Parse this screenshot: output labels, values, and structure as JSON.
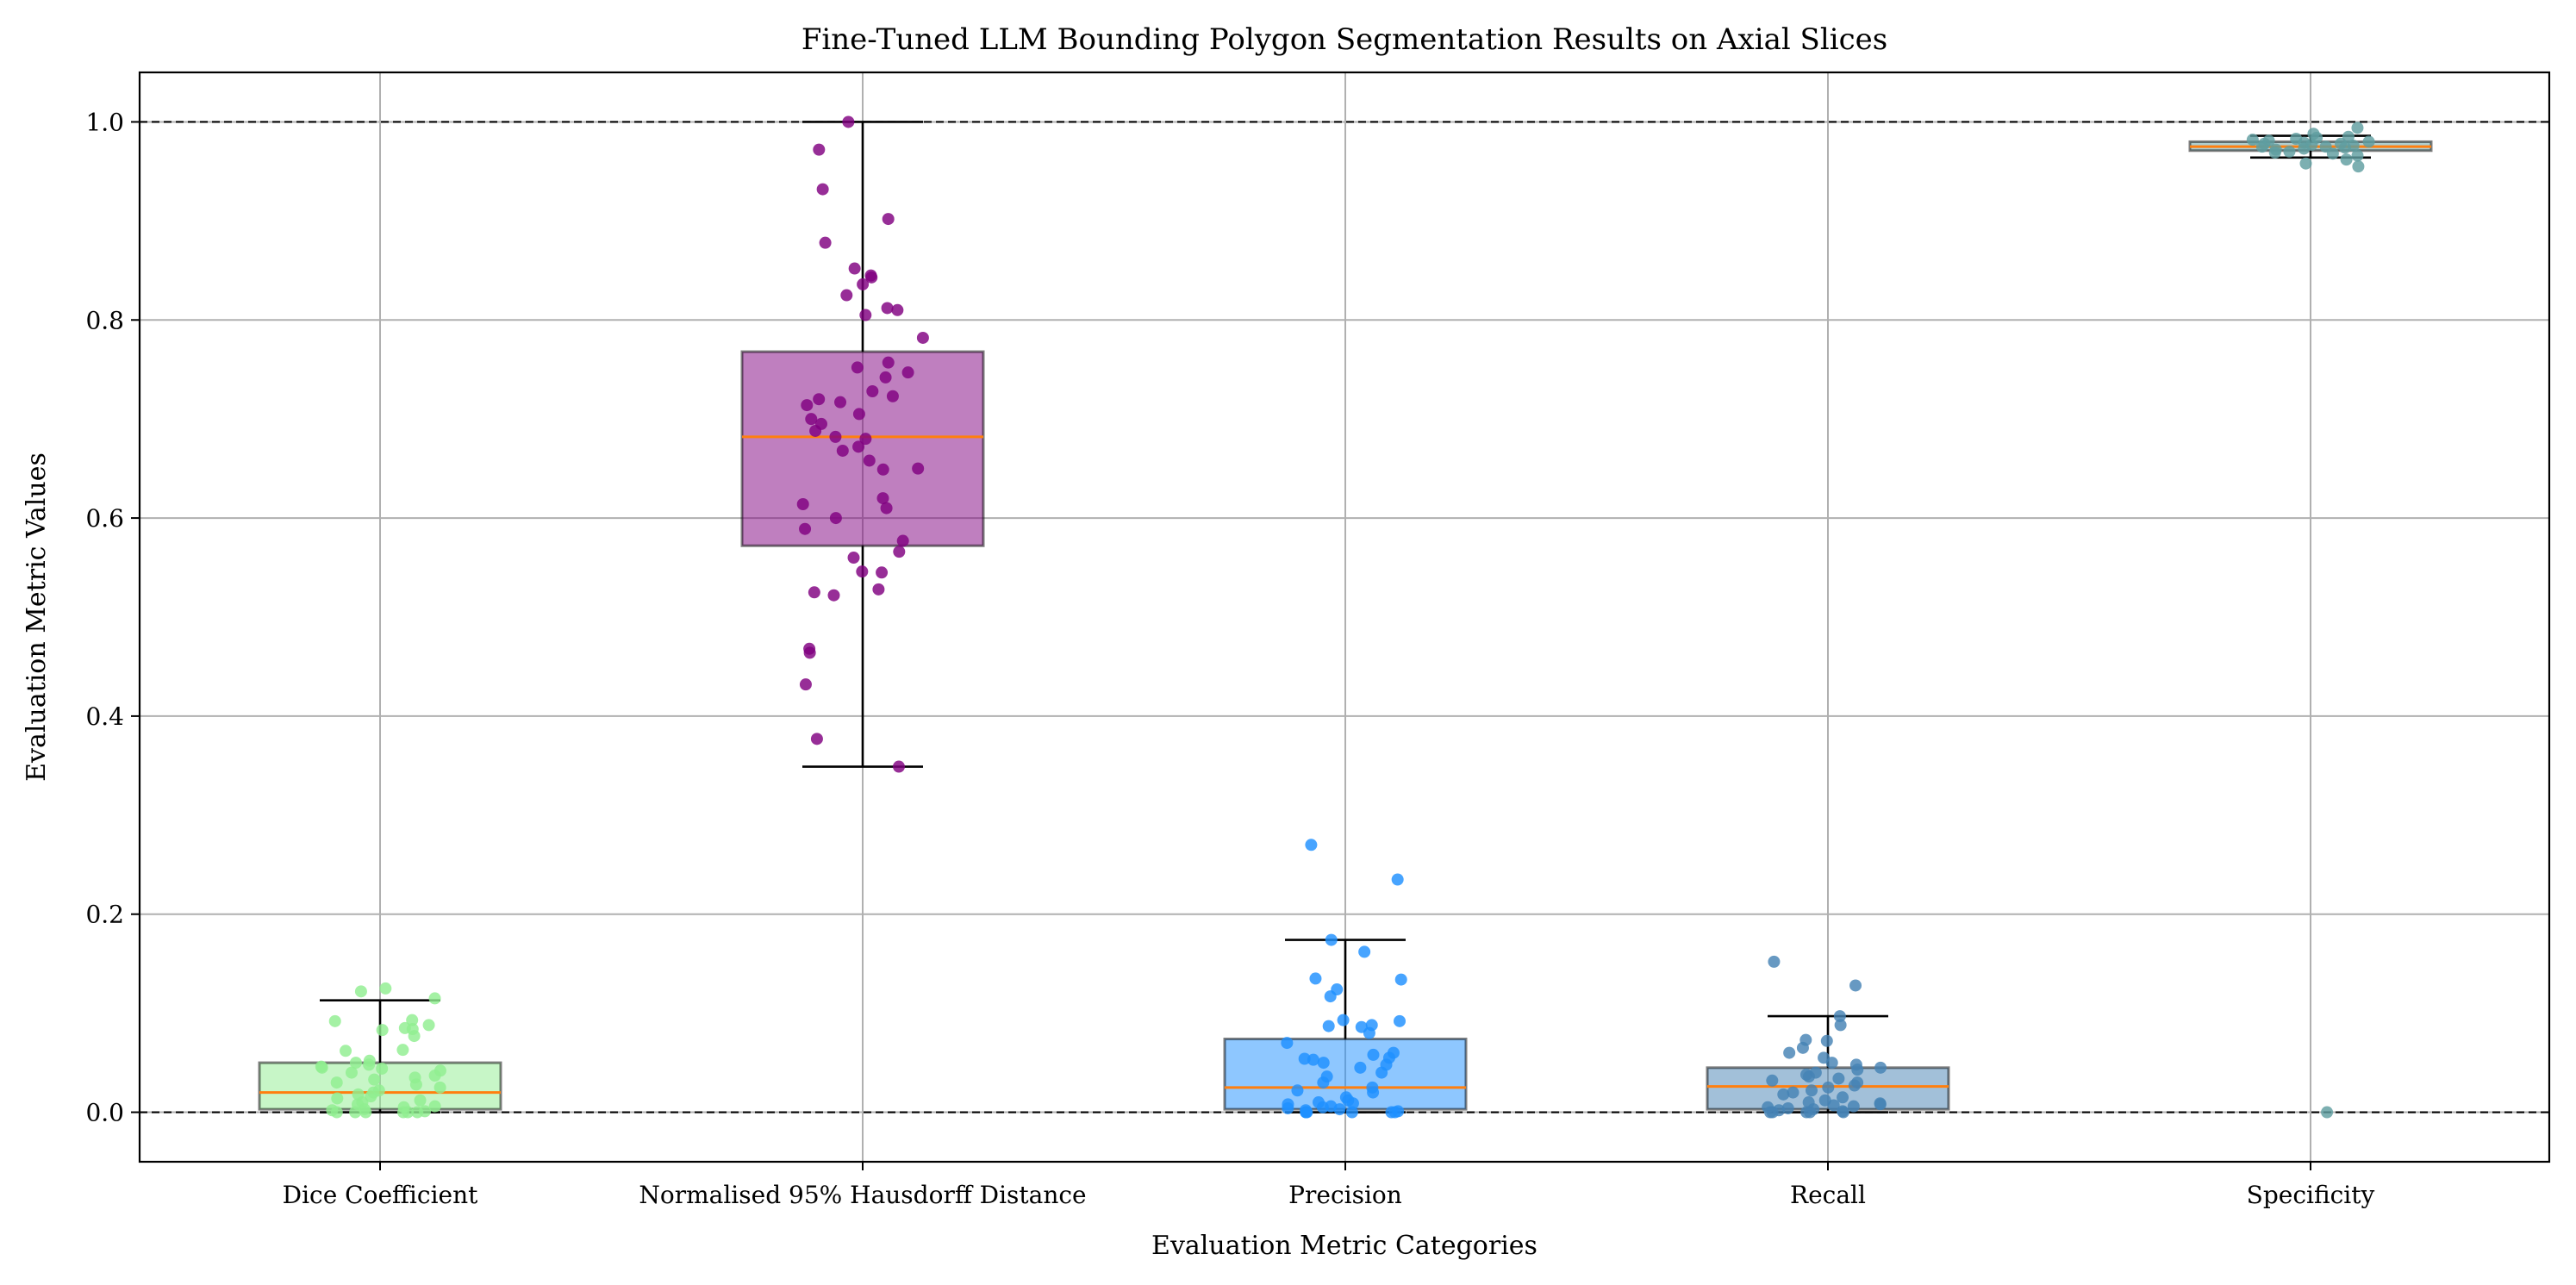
{
  "chart_data": {
    "type": "box",
    "title": "Fine-Tuned LLM Bounding Polygon Segmentation Results on Axial Slices",
    "xlabel": "Evaluation Metric Categories",
    "ylabel": "Evaluation Metric Values",
    "ylim": [
      -0.05,
      1.05
    ],
    "yticks": [
      "0.0",
      "0.2",
      "0.4",
      "0.6",
      "0.8",
      "1.0"
    ],
    "grid": true,
    "reference_lines": [
      0.0,
      1.0
    ],
    "categories": [
      "Dice Coefficient",
      "Normalised 95% Hausdorff Distance",
      "Precision",
      "Recall",
      "Specificity"
    ],
    "boxes": [
      {
        "category": "Dice Coefficient",
        "whisker_low": 0.0,
        "q1": 0.003,
        "median": 0.02,
        "q3": 0.05,
        "whisker_high": 0.113,
        "fill": "#90ee90",
        "point_color": "#90ee90",
        "points": [
          0.125,
          0.122,
          0.115,
          0.093,
          0.092,
          0.088,
          0.085,
          0.084,
          0.083,
          0.077,
          0.063,
          0.062,
          0.052,
          0.05,
          0.048,
          0.046,
          0.045,
          0.044,
          0.042,
          0.04,
          0.037,
          0.035,
          0.033,
          0.03,
          0.028,
          0.025,
          0.022,
          0.02,
          0.018,
          0.016,
          0.014,
          0.012,
          0.01,
          0.008,
          0.006,
          0.005,
          0.003,
          0.002,
          0.001,
          0.0,
          0.0,
          0.0,
          0.0,
          0.0,
          0.0
        ]
      },
      {
        "category": "Normalised 95% Hausdorff Distance",
        "whisker_low": 0.349,
        "q1": 0.572,
        "median": 0.682,
        "q3": 0.768,
        "whisker_high": 1.0,
        "fill": "#800080",
        "point_color": "#800080",
        "points": [
          1.0,
          0.972,
          0.932,
          0.902,
          0.878,
          0.852,
          0.845,
          0.843,
          0.836,
          0.825,
          0.812,
          0.81,
          0.805,
          0.782,
          0.757,
          0.752,
          0.747,
          0.742,
          0.728,
          0.723,
          0.72,
          0.717,
          0.714,
          0.705,
          0.7,
          0.695,
          0.688,
          0.682,
          0.68,
          0.672,
          0.668,
          0.658,
          0.65,
          0.649,
          0.62,
          0.614,
          0.61,
          0.6,
          0.589,
          0.577,
          0.566,
          0.56,
          0.546,
          0.545,
          0.528,
          0.525,
          0.522,
          0.468,
          0.464,
          0.432,
          0.377,
          0.349
        ]
      },
      {
        "category": "Precision",
        "whisker_low": 0.0,
        "q1": 0.003,
        "median": 0.025,
        "q3": 0.074,
        "whisker_high": 0.174,
        "fill": "#1e90ff",
        "point_color": "#1e90ff",
        "points": [
          0.27,
          0.235,
          0.174,
          0.162,
          0.135,
          0.134,
          0.124,
          0.117,
          0.093,
          0.092,
          0.088,
          0.087,
          0.086,
          0.08,
          0.07,
          0.06,
          0.058,
          0.055,
          0.054,
          0.053,
          0.05,
          0.048,
          0.045,
          0.04,
          0.036,
          0.03,
          0.025,
          0.022,
          0.02,
          0.015,
          0.012,
          0.01,
          0.009,
          0.008,
          0.006,
          0.005,
          0.004,
          0.003,
          0.002,
          0.001,
          0.0,
          0.0,
          0.0,
          0.0,
          0.0,
          0.0
        ]
      },
      {
        "category": "Recall",
        "whisker_low": 0.0,
        "q1": 0.003,
        "median": 0.026,
        "q3": 0.045,
        "whisker_high": 0.097,
        "fill": "#4682b4",
        "point_color": "#4682b4",
        "points": [
          0.152,
          0.128,
          0.097,
          0.088,
          0.073,
          0.072,
          0.065,
          0.06,
          0.055,
          0.05,
          0.048,
          0.045,
          0.043,
          0.04,
          0.038,
          0.036,
          0.034,
          0.032,
          0.03,
          0.027,
          0.025,
          0.022,
          0.02,
          0.018,
          0.015,
          0.012,
          0.01,
          0.009,
          0.008,
          0.007,
          0.006,
          0.005,
          0.004,
          0.003,
          0.002,
          0.001,
          0.0,
          0.0,
          0.0,
          0.0,
          0.0
        ]
      },
      {
        "category": "Specificity",
        "whisker_low": 0.964,
        "q1": 0.971,
        "median": 0.975,
        "q3": 0.98,
        "whisker_high": 0.986,
        "fill": "#5f9ea0",
        "point_color": "#5f9ea0",
        "points": [
          0.994,
          0.988,
          0.985,
          0.984,
          0.983,
          0.982,
          0.981,
          0.98,
          0.979,
          0.978,
          0.978,
          0.977,
          0.976,
          0.975,
          0.975,
          0.974,
          0.973,
          0.972,
          0.97,
          0.969,
          0.968,
          0.966,
          0.962,
          0.958,
          0.955,
          0.0
        ]
      }
    ]
  }
}
